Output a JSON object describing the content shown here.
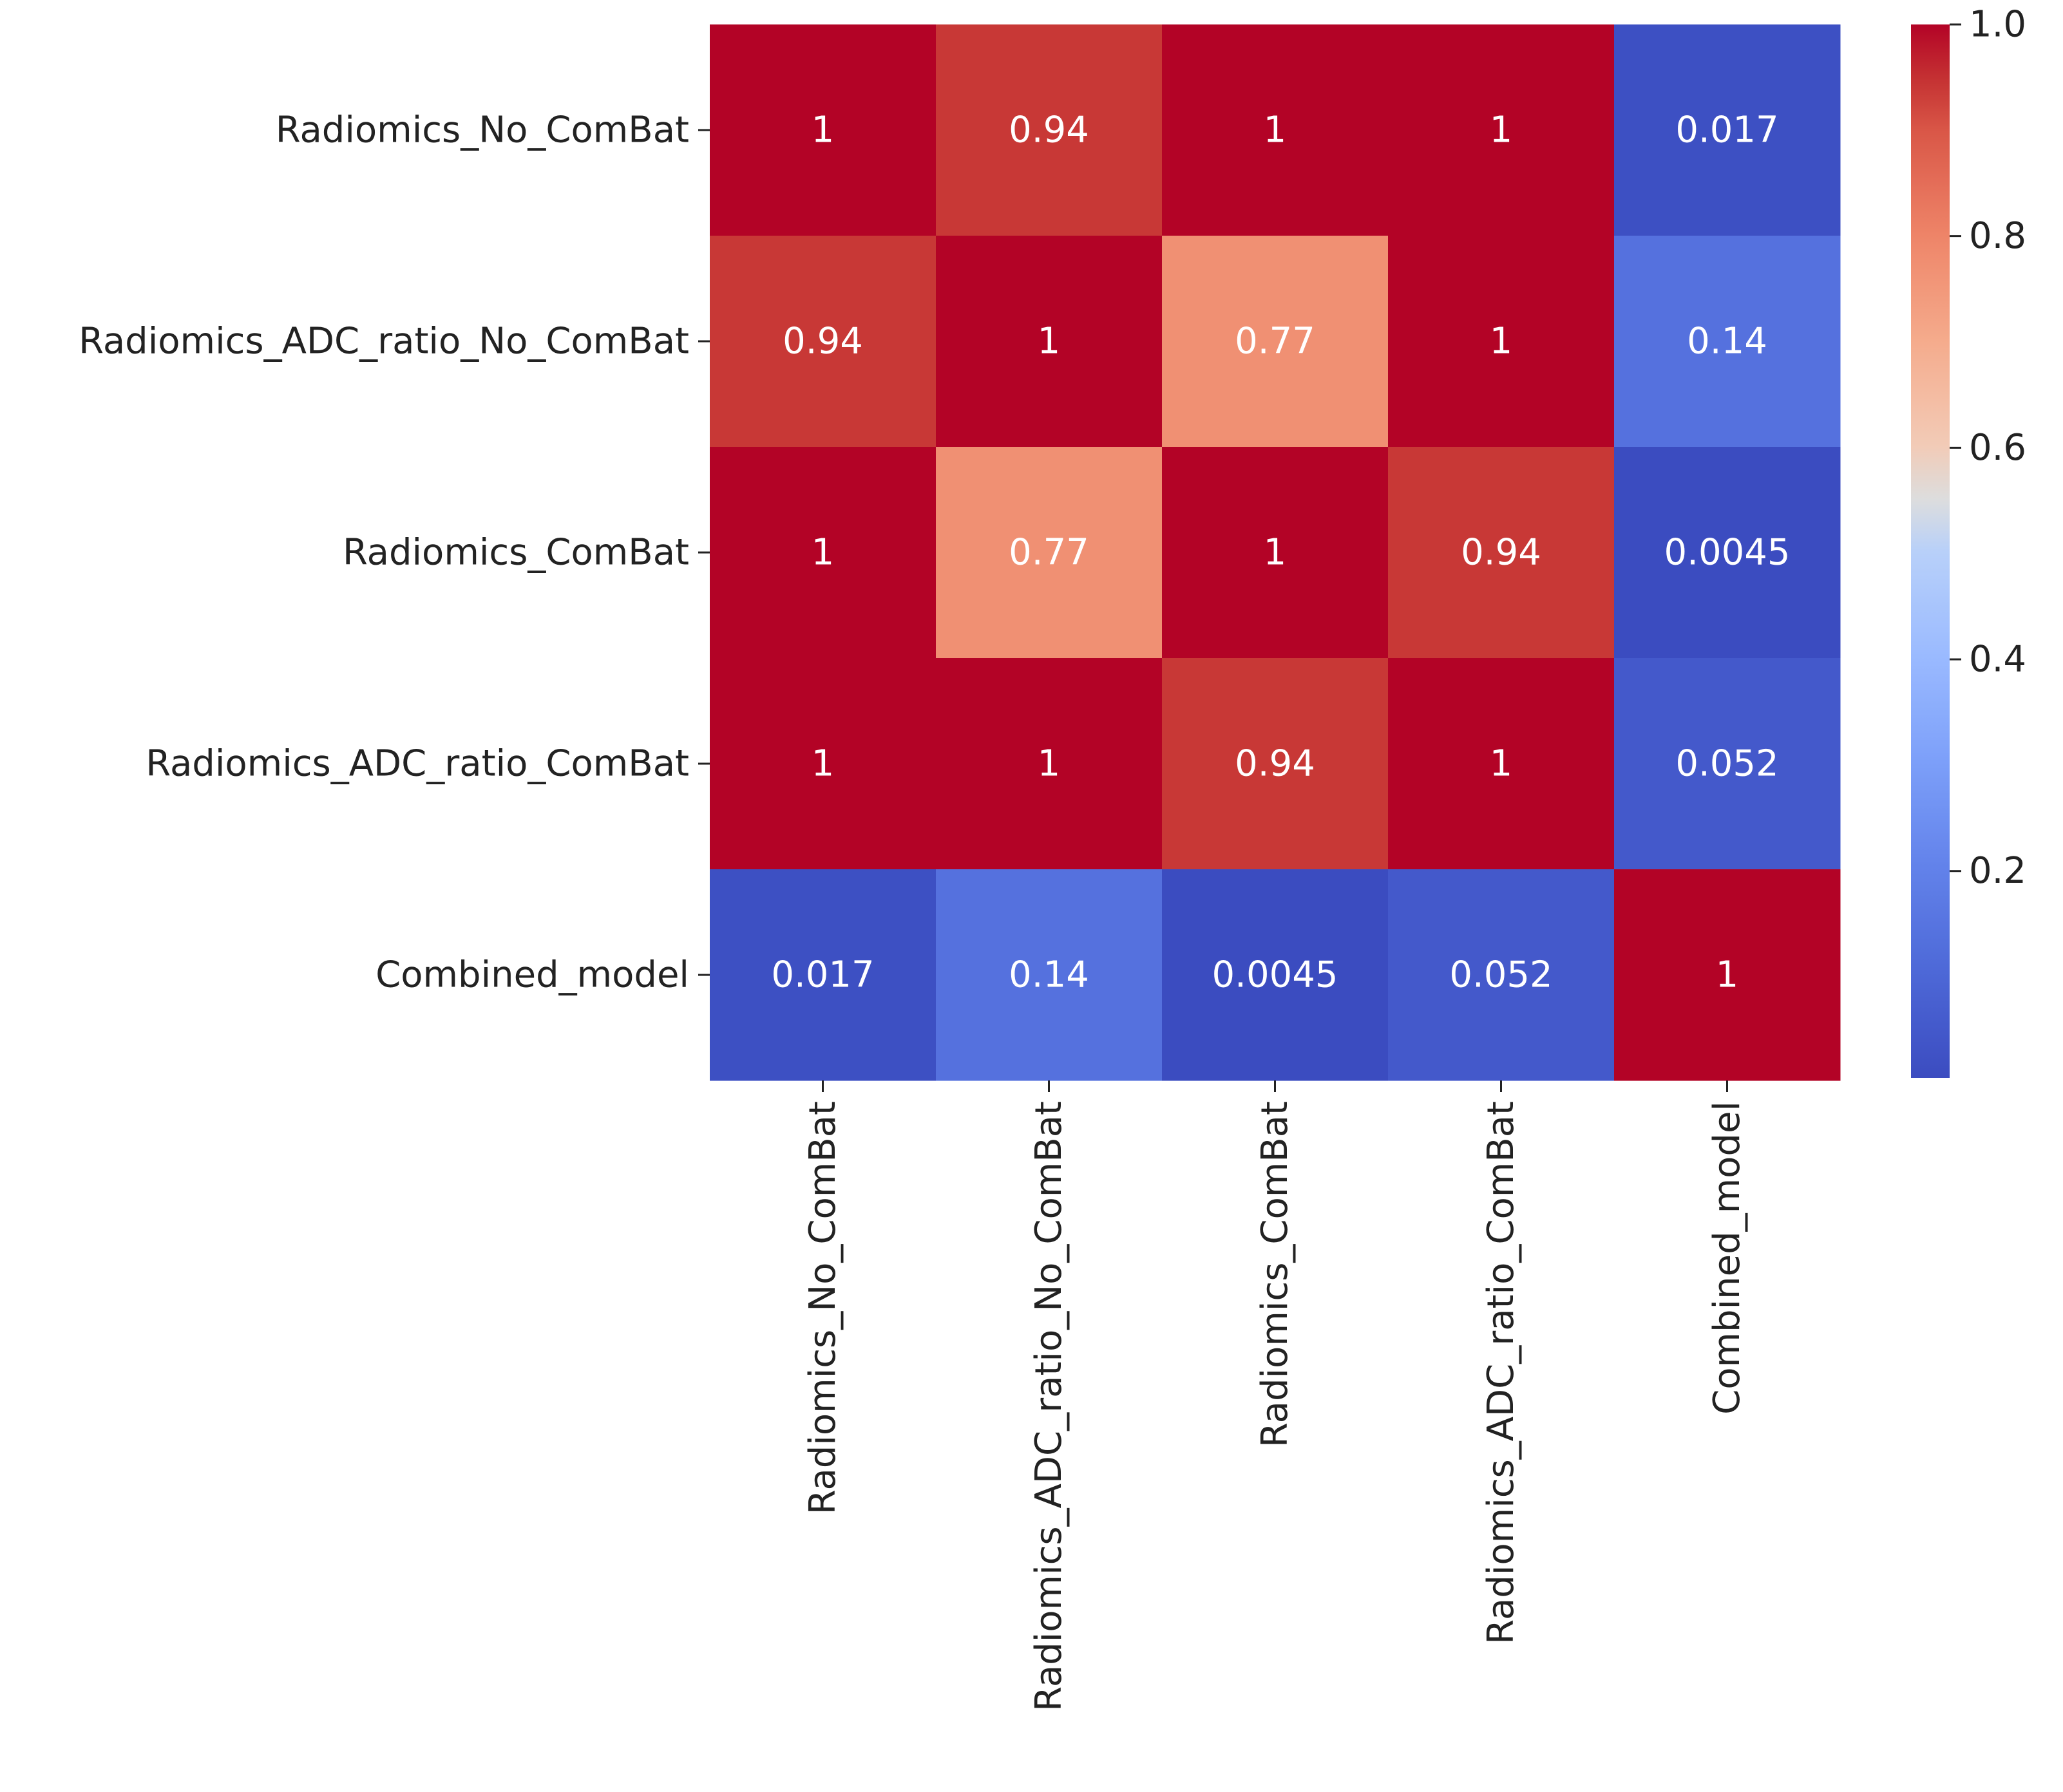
{
  "chart_data": {
    "type": "heatmap",
    "title": "",
    "xlabel": "",
    "ylabel": "",
    "row_labels": [
      "Radiomics_No_ComBat",
      "Radiomics_ADC_ratio_No_ComBat",
      "Radiomics_ComBat",
      "Radiomics_ADC_ratio_ComBat",
      "Combined_model"
    ],
    "col_labels": [
      "Radiomics_No_ComBat",
      "Radiomics_ADC_ratio_No_ComBat",
      "Radiomics_ComBat",
      "Radiomics_ADC_ratio_ComBat",
      "Combined_model"
    ],
    "values": [
      [
        1,
        0.94,
        1,
        1,
        0.017
      ],
      [
        0.94,
        1,
        0.77,
        1,
        0.14
      ],
      [
        1,
        0.77,
        1,
        0.94,
        0.0045
      ],
      [
        1,
        1,
        0.94,
        1,
        0.052
      ],
      [
        0.017,
        0.14,
        0.0045,
        0.052,
        1
      ]
    ],
    "annotations": [
      [
        "1",
        "0.94",
        "1",
        "1",
        "0.017"
      ],
      [
        "0.94",
        "1",
        "0.77",
        "1",
        "0.14"
      ],
      [
        "1",
        "0.77",
        "1",
        "0.94",
        "0.0045"
      ],
      [
        "1",
        "1",
        "0.94",
        "1",
        "0.052"
      ],
      [
        "0.017",
        "0.14",
        "0.0045",
        "0.052",
        "1"
      ]
    ],
    "colormap": "coolwarm",
    "colorbar": {
      "range": [
        0.0045,
        1.0
      ],
      "ticks": [
        0.2,
        0.4,
        0.6,
        0.8,
        1.0
      ],
      "tick_labels": [
        "0.2",
        "0.4",
        "0.6",
        "0.8",
        "1.0"
      ]
    }
  }
}
